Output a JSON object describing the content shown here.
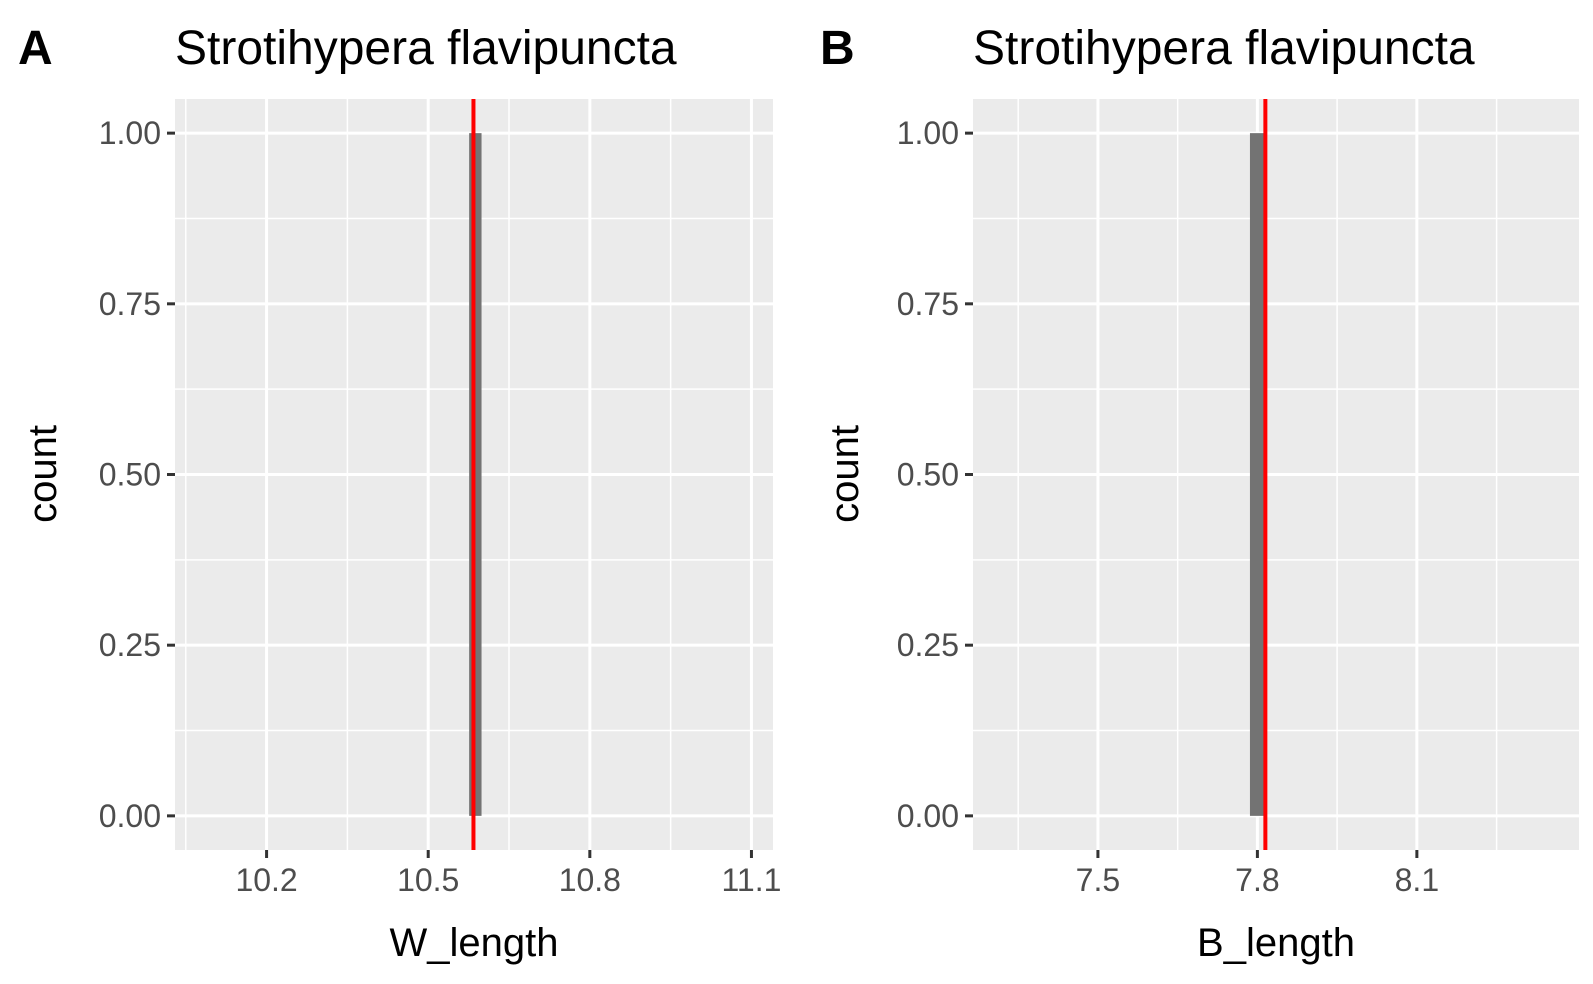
{
  "chart_data": [
    {
      "type": "bar",
      "panel_tag": "A",
      "title": "Strotihypera flavipuncta",
      "xlabel": "W_length",
      "ylabel": "count",
      "xlim": [
        10.03,
        11.14
      ],
      "ylim": [
        -0.05,
        1.05
      ],
      "x_ticks": [
        10.2,
        10.5,
        10.8,
        11.1
      ],
      "x_tick_labels": [
        "10.2",
        "10.5",
        "10.8",
        "11.1"
      ],
      "y_ticks": [
        0,
        0.25,
        0.5,
        0.75,
        1
      ],
      "y_tick_labels": [
        "0.00",
        "0.25",
        "0.50",
        "0.75",
        "1.00"
      ],
      "bars": [
        {
          "x_start": 10.576,
          "x_end": 10.599,
          "count": 1
        }
      ],
      "reference_line": {
        "x": 10.584,
        "color": "#ff0000"
      },
      "grid": true,
      "bar_color": "#737373",
      "panel_background": "#ebebeb"
    },
    {
      "type": "bar",
      "panel_tag": "B",
      "title": "Strotihypera flavipuncta",
      "xlabel": "B_length",
      "ylabel": "count",
      "xlim": [
        7.265,
        8.405
      ],
      "ylim": [
        -0.05,
        1.05
      ],
      "x_ticks": [
        7.5,
        7.8,
        8.1
      ],
      "x_tick_labels": [
        "7.5",
        "7.8",
        "8.1"
      ],
      "y_ticks": [
        0,
        0.25,
        0.5,
        0.75,
        1
      ],
      "y_tick_labels": [
        "0.00",
        "0.25",
        "0.50",
        "0.75",
        "1.00"
      ],
      "bars": [
        {
          "x_start": 7.786,
          "x_end": 7.815,
          "count": 1
        }
      ],
      "reference_line": {
        "x": 7.815,
        "color": "#ff0000"
      },
      "grid": true,
      "bar_color": "#737373",
      "panel_background": "#ebebeb"
    }
  ]
}
